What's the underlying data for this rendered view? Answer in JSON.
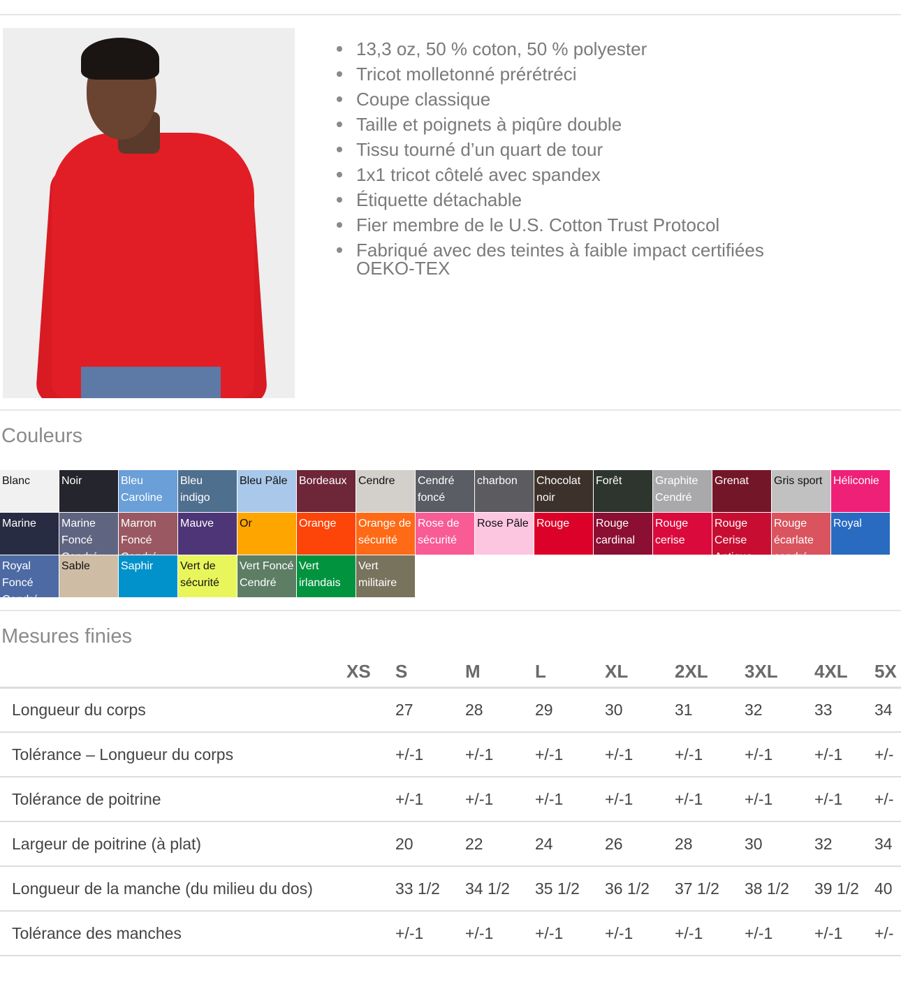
{
  "product": {
    "image_alt": "Sweatshirt rouge",
    "features": [
      "13,3 oz, 50 % coton, 50 % polyester",
      "Tricot molletonné prérétréci",
      "Coupe classique",
      "Taille et poignets à piqûre double",
      "Tissu tourné d’un quart de tour",
      "1x1 tricot côtelé avec spandex",
      "Étiquette détachable",
      "Fier membre de le U.S. Cotton Trust Protocol",
      "Fabriqué avec des teintes à faible impact certifiées OEKO-TEX"
    ]
  },
  "colors": {
    "title": "Couleurs",
    "items": [
      {
        "name": "Blanc",
        "hex": "#f1f1f1",
        "dark": true
      },
      {
        "name": "Noir",
        "hex": "#25252d"
      },
      {
        "name": "Bleu Caroline",
        "hex": "#6a9fd8"
      },
      {
        "name": "Bleu indigo",
        "hex": "#4f6f8e"
      },
      {
        "name": "Bleu Pâle",
        "hex": "#a9c8ea",
        "dark": true
      },
      {
        "name": "Bordeaux",
        "hex": "#6e2639"
      },
      {
        "name": "Cendre",
        "hex": "#d3cfcb",
        "dark": true
      },
      {
        "name": "Cendré foncé",
        "hex": "#5a5d63"
      },
      {
        "name": "charbon",
        "hex": "#5b5b60"
      },
      {
        "name": "Chocolat noir",
        "hex": "#3d322b"
      },
      {
        "name": "Forêt",
        "hex": "#2e352e"
      },
      {
        "name": "Graphite Cendré",
        "hex": "#a9a9ab"
      },
      {
        "name": "Grenat",
        "hex": "#731628"
      },
      {
        "name": "Gris sport",
        "hex": "#c1c1c1",
        "dark": true
      },
      {
        "name": "Héliconie",
        "hex": "#ee2078"
      },
      {
        "name": "Marine",
        "hex": "#272c42"
      },
      {
        "name": "Marine Foncé Cendré",
        "hex": "#5f6581"
      },
      {
        "name": "Marron Foncé Cendré",
        "hex": "#9a5962"
      },
      {
        "name": "Mauve",
        "hex": "#4e3577"
      },
      {
        "name": "Or",
        "hex": "#fea500",
        "dark": true
      },
      {
        "name": "Orange",
        "hex": "#fd4509"
      },
      {
        "name": "Orange de sécurité",
        "hex": "#fe6a15"
      },
      {
        "name": "Rose de sécurité",
        "hex": "#f95b94"
      },
      {
        "name": "Rose Pâle",
        "hex": "#fcc6e0",
        "dark": true
      },
      {
        "name": "Rouge",
        "hex": "#dc0128"
      },
      {
        "name": "Rouge cardinal",
        "hex": "#8b0e33"
      },
      {
        "name": "Rouge cerise",
        "hex": "#db0a3c"
      },
      {
        "name": "Rouge Cerise Antique",
        "hex": "#c70e32"
      },
      {
        "name": "Rouge écarlate cendré",
        "hex": "#d9545e"
      },
      {
        "name": "Royal",
        "hex": "#2a6bc2"
      },
      {
        "name": "Royal Foncé Cendré",
        "hex": "#4d6aa4"
      },
      {
        "name": "Sable",
        "hex": "#cfbca5",
        "dark": true
      },
      {
        "name": "Saphir",
        "hex": "#0292cb"
      },
      {
        "name": "Vert de sécurité",
        "hex": "#e8f65c",
        "dark": true
      },
      {
        "name": "Vert Foncé Cendré",
        "hex": "#5d7d65"
      },
      {
        "name": "Vert irlandais",
        "hex": "#02933f"
      },
      {
        "name": "Vert militaire",
        "hex": "#78735d"
      }
    ]
  },
  "measurements": {
    "title": "Mesures finies",
    "sizes": [
      "XS",
      "S",
      "M",
      "L",
      "XL",
      "2XL",
      "3XL",
      "4XL",
      "5X"
    ],
    "rows": [
      {
        "label": "Longueur du corps",
        "values": [
          "",
          "27",
          "28",
          "29",
          "30",
          "31",
          "32",
          "33",
          "34"
        ]
      },
      {
        "label": "Tolérance – Longueur du corps",
        "values": [
          "",
          "+/-1",
          "+/-1",
          "+/-1",
          "+/-1",
          "+/-1",
          "+/-1",
          "+/-1",
          "+/-"
        ]
      },
      {
        "label": "Tolérance de poitrine",
        "values": [
          "",
          "+/-1",
          "+/-1",
          "+/-1",
          "+/-1",
          "+/-1",
          "+/-1",
          "+/-1",
          "+/-"
        ]
      },
      {
        "label": "Largeur de poitrine (à plat)",
        "values": [
          "",
          "20",
          "22",
          "24",
          "26",
          "28",
          "30",
          "32",
          "34"
        ]
      },
      {
        "label": "Longueur de la manche (du milieu du dos)",
        "values": [
          "",
          "33 1/2",
          "34 1/2",
          "35 1/2",
          "36 1/2",
          "37 1/2",
          "38 1/2",
          "39 1/2",
          "40"
        ]
      },
      {
        "label": "Tolérance des manches",
        "values": [
          "",
          "+/-1",
          "+/-1",
          "+/-1",
          "+/-1",
          "+/-1",
          "+/-1",
          "+/-1",
          "+/-"
        ]
      }
    ]
  }
}
